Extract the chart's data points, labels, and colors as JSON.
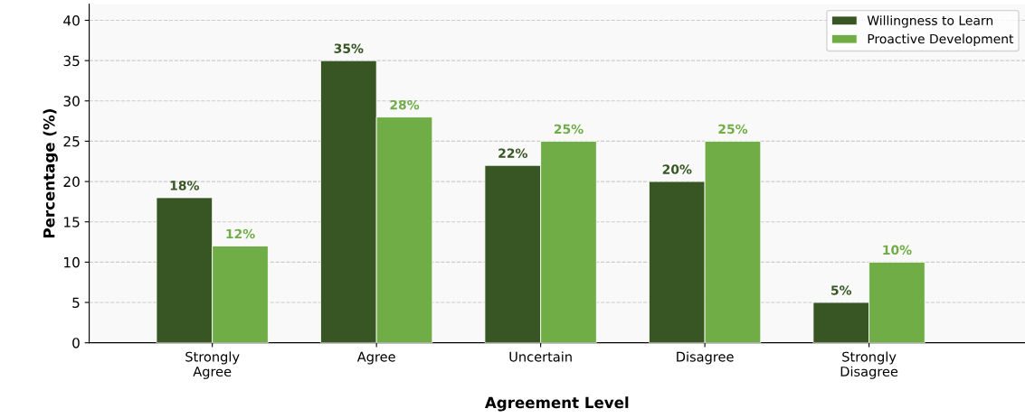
{
  "chart_data": {
    "type": "bar",
    "xlabel": "Agreement Level",
    "ylabel": "Percentage (%)",
    "categories": [
      "Strongly\nAgree",
      "Agree",
      "Uncertain",
      "Disagree",
      "Strongly\nDisagree"
    ],
    "series": [
      {
        "name": "Willingness to Learn",
        "color": "#375623",
        "values": [
          18,
          35,
          22,
          20,
          5
        ],
        "value_labels": [
          "18%",
          "35%",
          "22%",
          "20%",
          "5%"
        ]
      },
      {
        "name": "Proactive Development",
        "color": "#70ad47",
        "values": [
          12,
          28,
          25,
          25,
          10
        ],
        "value_labels": [
          "12%",
          "28%",
          "25%",
          "25%",
          "10%"
        ]
      }
    ],
    "ylim": [
      0,
      42
    ],
    "yticks": [
      0,
      5,
      10,
      15,
      20,
      25,
      30,
      35,
      40
    ],
    "grid": "y",
    "legend": "top right"
  }
}
